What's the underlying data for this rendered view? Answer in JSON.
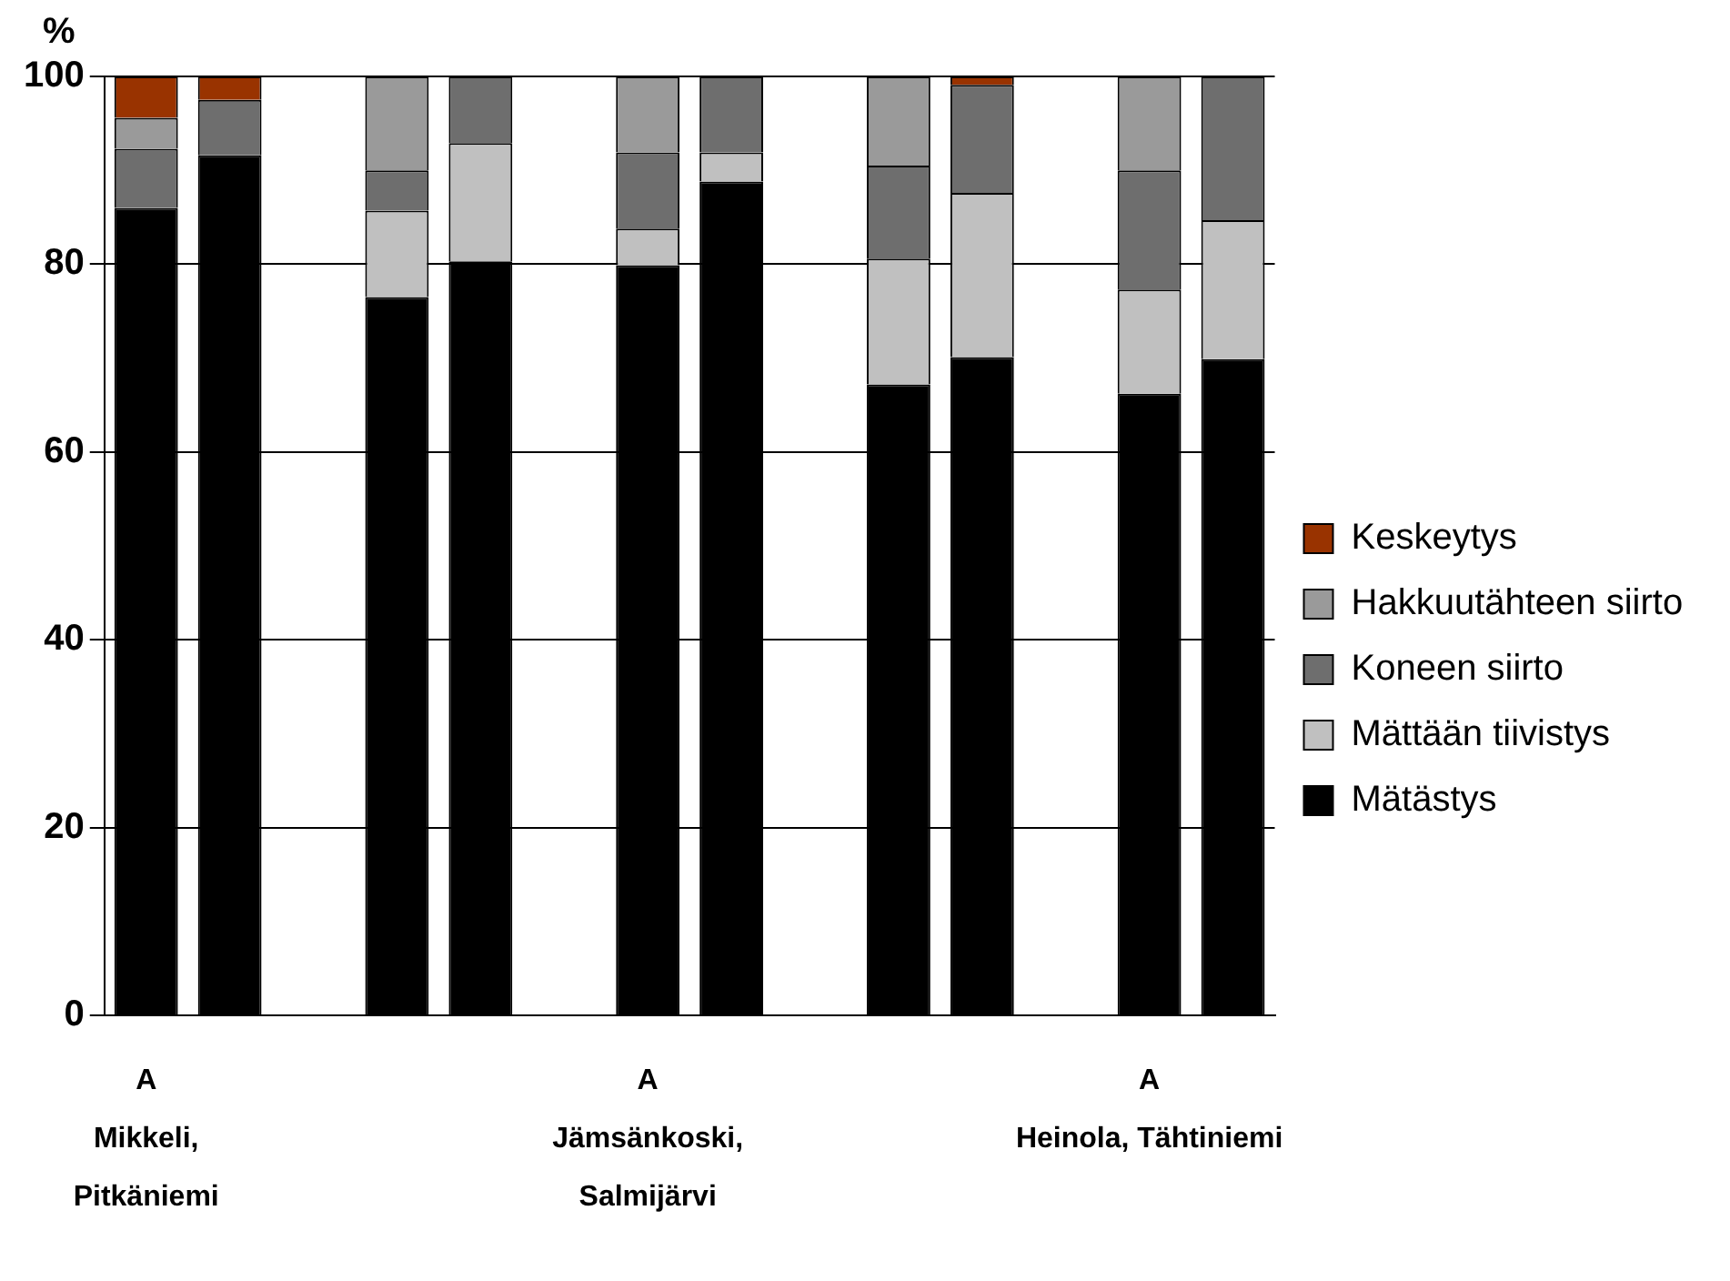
{
  "chart_data": {
    "type": "bar",
    "stacked": true,
    "ylabel": "%",
    "categories": [
      "A\nMikkeli,\nPitkäniemi",
      null,
      null,
      null,
      null,
      null,
      "A\nJämsänkoski,\nSalmijärvi",
      null,
      null,
      null,
      null,
      null,
      "A\nHeinola, Tähtiniemi",
      null
    ],
    "series": [
      {
        "name": "Mätästys",
        "color": "#000000",
        "values": [
          86.0,
          91.6,
          null,
          76.5,
          80.3,
          null,
          79.9,
          88.8,
          null,
          67.2,
          70.1,
          null,
          66.2,
          69.9
        ]
      },
      {
        "name": "Mättään tiivistys",
        "color": "#c0c0c0",
        "values": [
          0,
          0,
          null,
          9.2,
          12.6,
          null,
          3.9,
          3.1,
          null,
          13.4,
          17.5,
          null,
          11.1,
          14.8
        ]
      },
      {
        "name": "Koneen siirto",
        "color": "#6e6e6e",
        "values": [
          6.3,
          5.9,
          null,
          4.3,
          7.1,
          null,
          8.1,
          8.1,
          null,
          9.9,
          11.5,
          null,
          12.7,
          15.3
        ]
      },
      {
        "name": "Hakkuutähteen siirto",
        "color": "#9a9a9a",
        "values": [
          3.3,
          0,
          null,
          10.0,
          0,
          null,
          8.1,
          0,
          null,
          9.5,
          0,
          null,
          10.0,
          0
        ]
      },
      {
        "name": "Keskeytys",
        "color": "#993300",
        "values": [
          4.4,
          2.5,
          null,
          0,
          0,
          null,
          0,
          0,
          null,
          0,
          0.9,
          null,
          0,
          0
        ]
      }
    ],
    "ylim": [
      0,
      100
    ],
    "yticks": [
      0,
      20,
      40,
      60,
      80,
      100
    ],
    "grid": "y",
    "legend": "right"
  }
}
